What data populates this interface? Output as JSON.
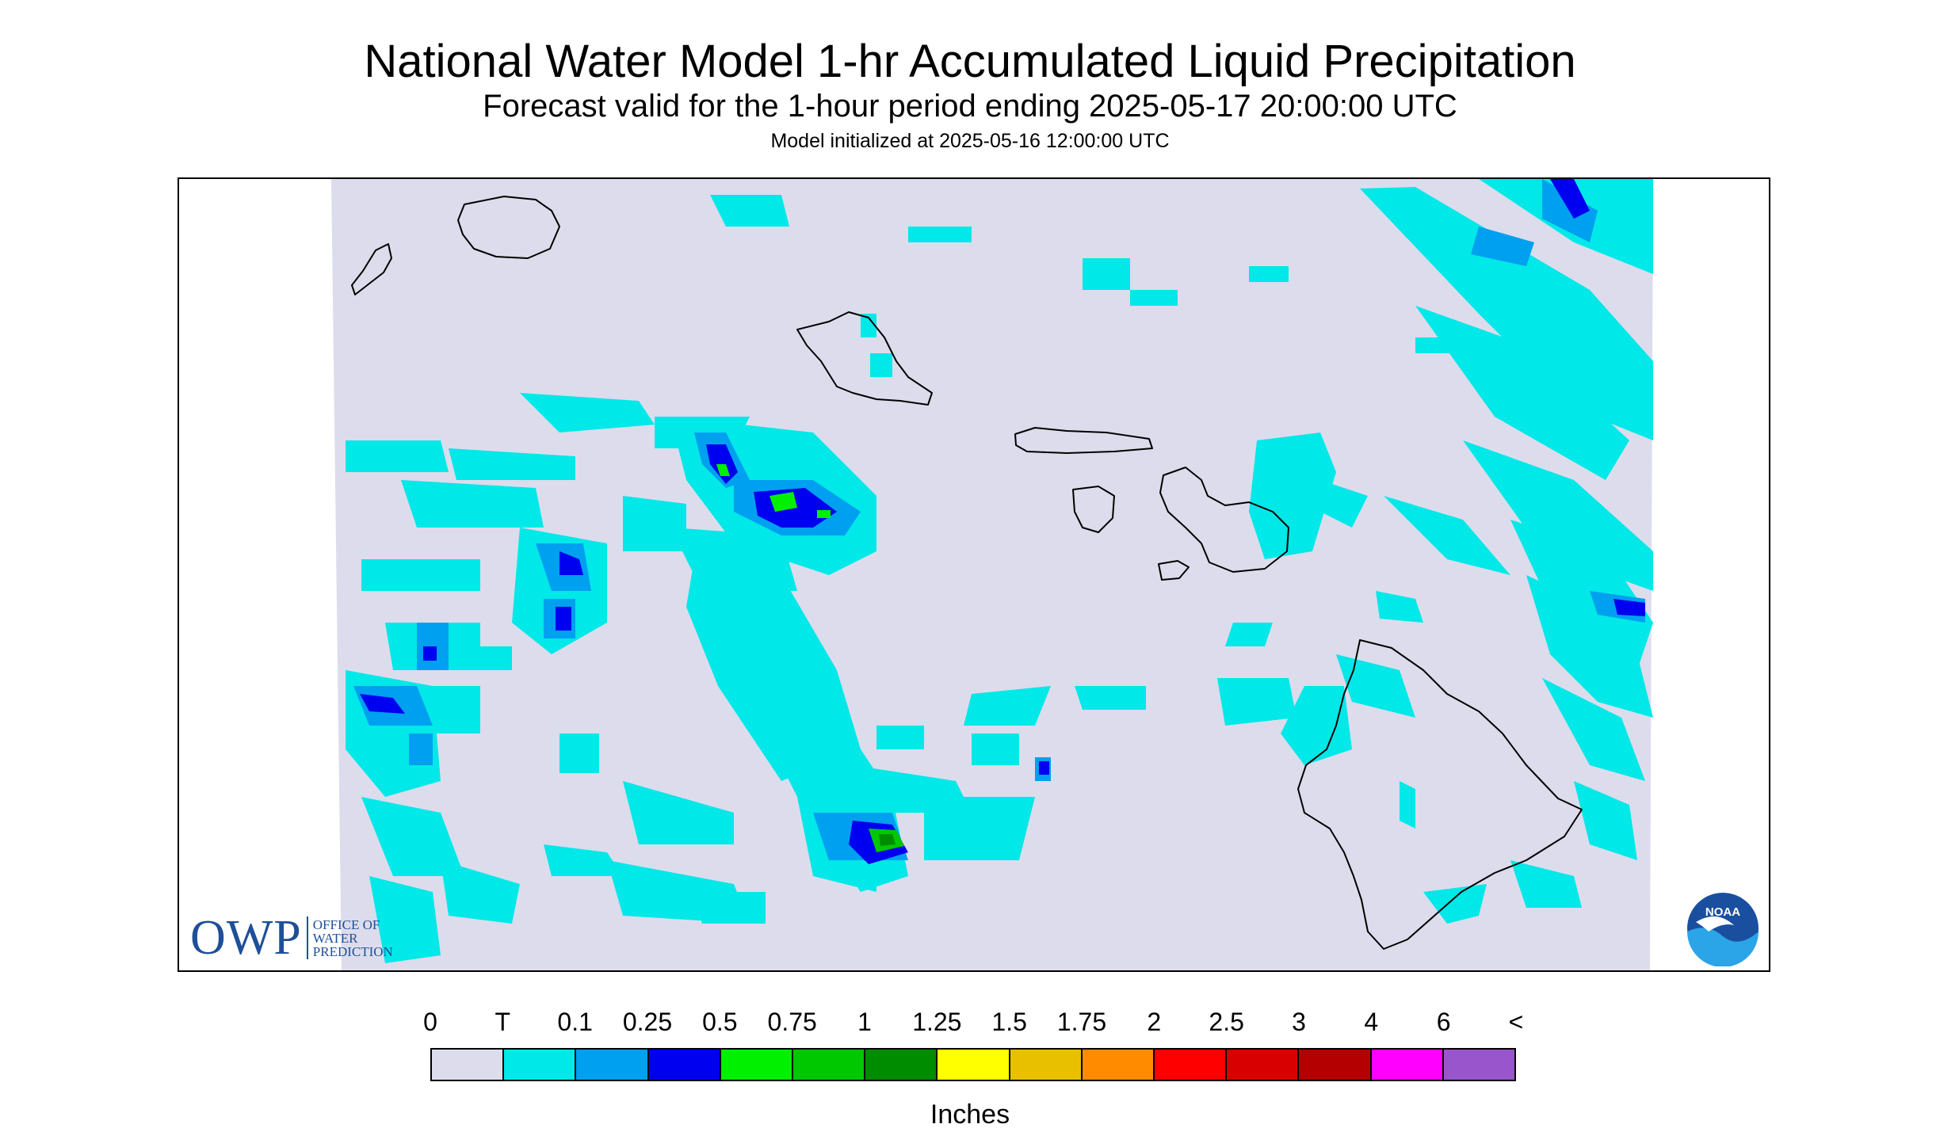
{
  "title": "National Water Model 1-hr Accumulated Liquid Precipitation",
  "subtitle": "Forecast valid for the 1-hour period ending 2025-05-17 20:00:00 UTC",
  "init_text": "Model initialized at 2025-05-16 12:00:00 UTC",
  "map": {
    "region": "Hawaiian Islands",
    "background_color": "#dcdcec",
    "coastline_color": "#000000"
  },
  "owp_logo": {
    "letters": "OWP",
    "lines": [
      "OFFICE OF",
      "WATER",
      "PREDICTION"
    ],
    "color": "#1f4f98"
  },
  "noaa_logo": {
    "text": "NOAA",
    "icon": "noaa-seal-icon"
  },
  "legend": {
    "labels": [
      "0",
      "T",
      "0.1",
      "0.25",
      "0.5",
      "0.75",
      "1",
      "1.25",
      "1.5",
      "1.75",
      "2",
      "2.5",
      "3",
      "4",
      "6",
      "<"
    ],
    "colors": [
      "#dcdcec",
      "#00e8e8",
      "#00a0f0",
      "#0000f0",
      "#00f000",
      "#00c800",
      "#008c00",
      "#ffff00",
      "#e8c000",
      "#ff8c00",
      "#ff0000",
      "#d80000",
      "#b40000",
      "#ff00ff",
      "#9955cc"
    ],
    "units": "Inches"
  }
}
